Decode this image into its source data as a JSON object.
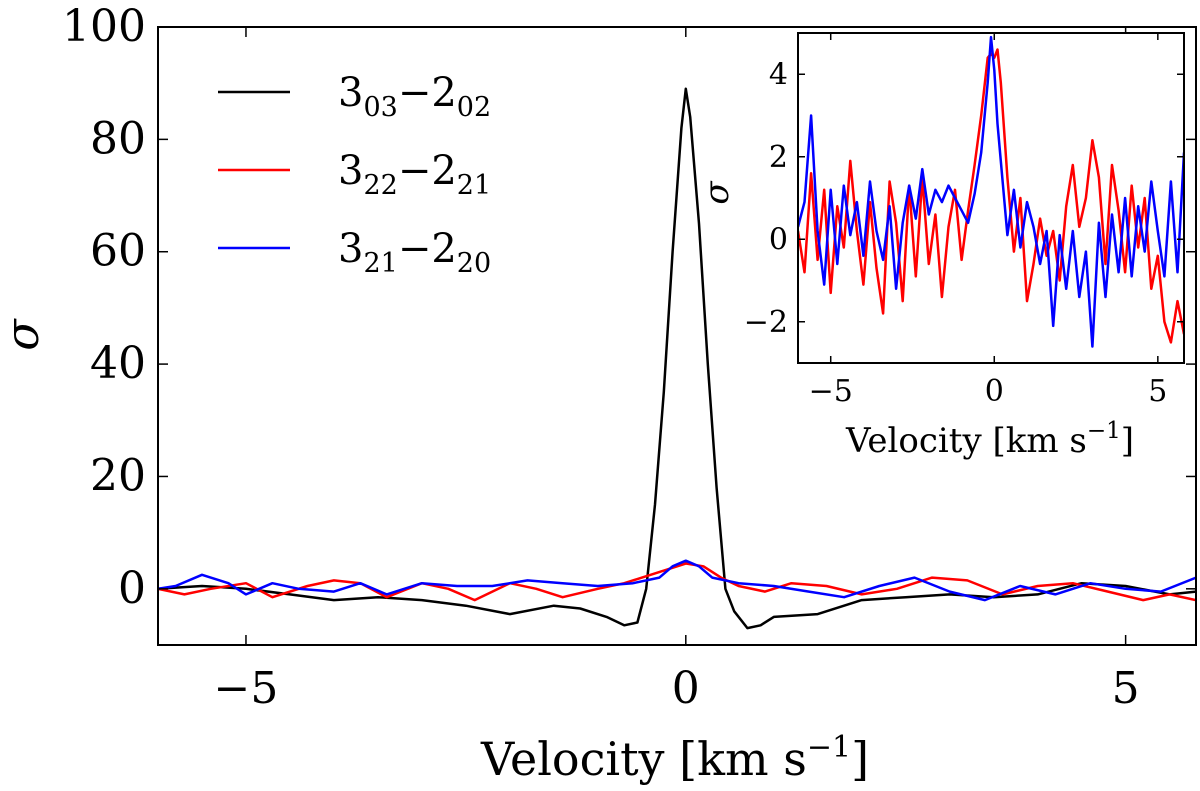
{
  "chart_data": [
    {
      "type": "line",
      "title": "",
      "xlabel": "Velocity [km s",
      "xlabel_exp": "−1",
      "xlabel_close": "]",
      "ylabel": "σ",
      "xlim": [
        -6,
        5.8
      ],
      "ylim": [
        -10,
        100
      ],
      "xticks": [
        -5,
        0,
        5
      ],
      "xtick_labels": [
        "−5",
        "0",
        "5"
      ],
      "yticks": [
        0,
        20,
        40,
        60,
        80,
        100
      ],
      "ytick_labels": [
        "0",
        "20",
        "40",
        "60",
        "80",
        "100"
      ],
      "legend_position": "upper-left",
      "legend": [
        {
          "base1": "3",
          "sub1": "03",
          "dash": "−",
          "base2": "2",
          "sub2": "02",
          "color": "#000000"
        },
        {
          "base1": "3",
          "sub1": "22",
          "dash": "−",
          "base2": "2",
          "sub2": "21",
          "color": "#ff0000"
        },
        {
          "base1": "3",
          "sub1": "21",
          "dash": "−",
          "base2": "2",
          "sub2": "20",
          "color": "#0000ff"
        }
      ],
      "series": [
        {
          "name": "3_03−2_02",
          "color": "#000000",
          "x": [
            -6,
            -5.5,
            -5,
            -4.5,
            -4,
            -3.5,
            -3,
            -2.5,
            -2,
            -1.5,
            -1.2,
            -0.9,
            -0.7,
            -0.55,
            -0.45,
            -0.35,
            -0.25,
            -0.15,
            -0.05,
            0,
            0.05,
            0.15,
            0.25,
            0.35,
            0.45,
            0.55,
            0.7,
            0.85,
            1,
            1.5,
            2,
            2.5,
            3,
            3.5,
            4,
            4.5,
            5,
            5.5,
            5.8
          ],
          "values": [
            0,
            0.5,
            0,
            -1,
            -2,
            -1.5,
            -2,
            -3,
            -4.5,
            -3,
            -3.5,
            -5,
            -6.5,
            -6,
            0,
            15,
            35,
            60,
            82,
            89,
            84,
            65,
            40,
            18,
            0,
            -4,
            -7,
            -6.5,
            -5,
            -4.5,
            -2,
            -1.5,
            -1,
            -1.5,
            -1,
            1,
            0.5,
            -1,
            -0.5
          ]
        },
        {
          "name": "3_22−2_21",
          "color": "#ff0000",
          "x": [
            -6,
            -5.7,
            -5.4,
            -5,
            -4.7,
            -4.3,
            -4,
            -3.7,
            -3.4,
            -3,
            -2.7,
            -2.4,
            -2,
            -1.7,
            -1.4,
            -1,
            -0.7,
            -0.4,
            -0.2,
            0,
            0.2,
            0.4,
            0.6,
            0.9,
            1.2,
            1.6,
            2,
            2.4,
            2.8,
            3.2,
            3.6,
            4,
            4.4,
            4.8,
            5.2,
            5.5,
            5.8
          ],
          "values": [
            0,
            -1,
            0,
            1,
            -1.5,
            0.5,
            1.5,
            1,
            -1.5,
            1,
            0,
            -2,
            1,
            0,
            -1.5,
            0,
            1,
            2.5,
            3.5,
            4.5,
            4,
            2,
            0.5,
            -0.5,
            1,
            0.5,
            -1,
            0,
            2,
            1.5,
            -1,
            0.5,
            1,
            -0.5,
            -2,
            -1,
            -2
          ]
        },
        {
          "name": "3_21−2_20",
          "color": "#0000ff",
          "x": [
            -6,
            -5.8,
            -5.5,
            -5.2,
            -5,
            -4.7,
            -4.4,
            -4,
            -3.7,
            -3.4,
            -3,
            -2.6,
            -2.2,
            -1.8,
            -1.4,
            -1,
            -0.6,
            -0.3,
            -0.15,
            0,
            0.15,
            0.3,
            0.6,
            1,
            1.4,
            1.8,
            2.2,
            2.6,
            3,
            3.4,
            3.8,
            4.2,
            4.6,
            5,
            5.4,
            5.8
          ],
          "values": [
            0,
            0.5,
            2.5,
            1,
            -1,
            1,
            0,
            -0.5,
            1,
            -1,
            1,
            0.5,
            0.5,
            1.5,
            1,
            0.5,
            1,
            2,
            4,
            5,
            4,
            2,
            1,
            0.5,
            -0.5,
            -1.5,
            0.5,
            2,
            -0.5,
            -2,
            0.5,
            -1,
            1,
            0,
            -0.5,
            2
          ]
        }
      ]
    },
    {
      "type": "line",
      "title": "",
      "xlabel": "Velocity [km s",
      "xlabel_exp": "−1",
      "xlabel_close": "]",
      "ylabel": "σ",
      "xlim": [
        -6,
        5.8
      ],
      "ylim": [
        -3,
        5
      ],
      "xticks": [
        -5,
        0,
        5
      ],
      "xtick_labels": [
        "−5",
        "0",
        "5"
      ],
      "yticks": [
        -2,
        0,
        2,
        4
      ],
      "ytick_labels": [
        "−2",
        "0",
        "2",
        "4"
      ],
      "series": [
        {
          "name": "3_22−2_21",
          "color": "#ff0000",
          "x": [
            -6,
            -5.8,
            -5.6,
            -5.4,
            -5.2,
            -5,
            -4.8,
            -4.6,
            -4.4,
            -4.2,
            -4,
            -3.8,
            -3.6,
            -3.4,
            -3.2,
            -3,
            -2.8,
            -2.6,
            -2.4,
            -2.2,
            -2,
            -1.8,
            -1.6,
            -1.4,
            -1.2,
            -1,
            -0.8,
            -0.6,
            -0.4,
            -0.2,
            -0.1,
            0,
            0.1,
            0.2,
            0.4,
            0.6,
            0.8,
            1,
            1.2,
            1.4,
            1.6,
            1.8,
            2,
            2.2,
            2.4,
            2.6,
            2.8,
            3,
            3.2,
            3.4,
            3.6,
            3.8,
            4,
            4.2,
            4.4,
            4.6,
            4.8,
            5,
            5.2,
            5.4,
            5.6,
            5.8
          ],
          "values": [
            0.2,
            -0.8,
            1.6,
            -0.5,
            1.2,
            -1.3,
            0.8,
            -0.2,
            1.9,
            0.2,
            -1.1,
            0.9,
            -0.7,
            -1.8,
            1.4,
            0.4,
            -1.5,
            1.3,
            -0.9,
            1.5,
            -0.6,
            0.6,
            -1.4,
            0.3,
            1.2,
            -0.5,
            0.7,
            1.8,
            3.0,
            4.4,
            4.5,
            4.4,
            4.6,
            3.8,
            1.5,
            -0.3,
            1.0,
            -1.5,
            -0.6,
            0.5,
            -0.4,
            0.2,
            -1.0,
            0.8,
            1.8,
            0.3,
            1.0,
            2.4,
            1.5,
            -0.6,
            1.8,
            0.7,
            -0.8,
            1.3,
            -0.2,
            1.0,
            -1.2,
            -0.4,
            -2.0,
            -2.5,
            -1.5,
            -2.3
          ]
        },
        {
          "name": "3_21−2_20",
          "color": "#0000ff",
          "x": [
            -6,
            -5.8,
            -5.6,
            -5.4,
            -5.2,
            -5,
            -4.8,
            -4.6,
            -4.4,
            -4.2,
            -4,
            -3.8,
            -3.6,
            -3.4,
            -3.2,
            -3,
            -2.8,
            -2.6,
            -2.4,
            -2.2,
            -2,
            -1.8,
            -1.6,
            -1.4,
            -1.2,
            -1,
            -0.8,
            -0.6,
            -0.4,
            -0.2,
            -0.1,
            0,
            0.1,
            0.2,
            0.4,
            0.6,
            0.8,
            1,
            1.2,
            1.4,
            1.6,
            1.8,
            2,
            2.2,
            2.4,
            2.6,
            2.8,
            3,
            3.2,
            3.4,
            3.6,
            3.8,
            4,
            4.2,
            4.4,
            4.6,
            4.8,
            5,
            5.2,
            5.4,
            5.6,
            5.8
          ],
          "values": [
            0.3,
            0.9,
            3.0,
            0.2,
            -1.1,
            1.2,
            -0.6,
            1.3,
            0.1,
            0.9,
            -0.4,
            1.4,
            0.2,
            -0.5,
            0.8,
            -1.2,
            0.4,
            1.3,
            0.5,
            1.7,
            0.6,
            1.2,
            0.9,
            1.3,
            1.0,
            0.7,
            0.4,
            1.1,
            2.1,
            3.8,
            4.9,
            4.1,
            2.8,
            1.9,
            0.1,
            1.2,
            -0.2,
            0.9,
            0.3,
            -0.6,
            0.2,
            -2.1,
            0.1,
            -1.2,
            0.2,
            -1.4,
            -0.3,
            -2.6,
            0.4,
            -1.4,
            0.6,
            -0.8,
            1.0,
            -0.9,
            0.8,
            -0.3,
            1.4,
            0.2,
            -0.9,
            1.4,
            -0.8,
            2.1
          ]
        }
      ]
    }
  ]
}
